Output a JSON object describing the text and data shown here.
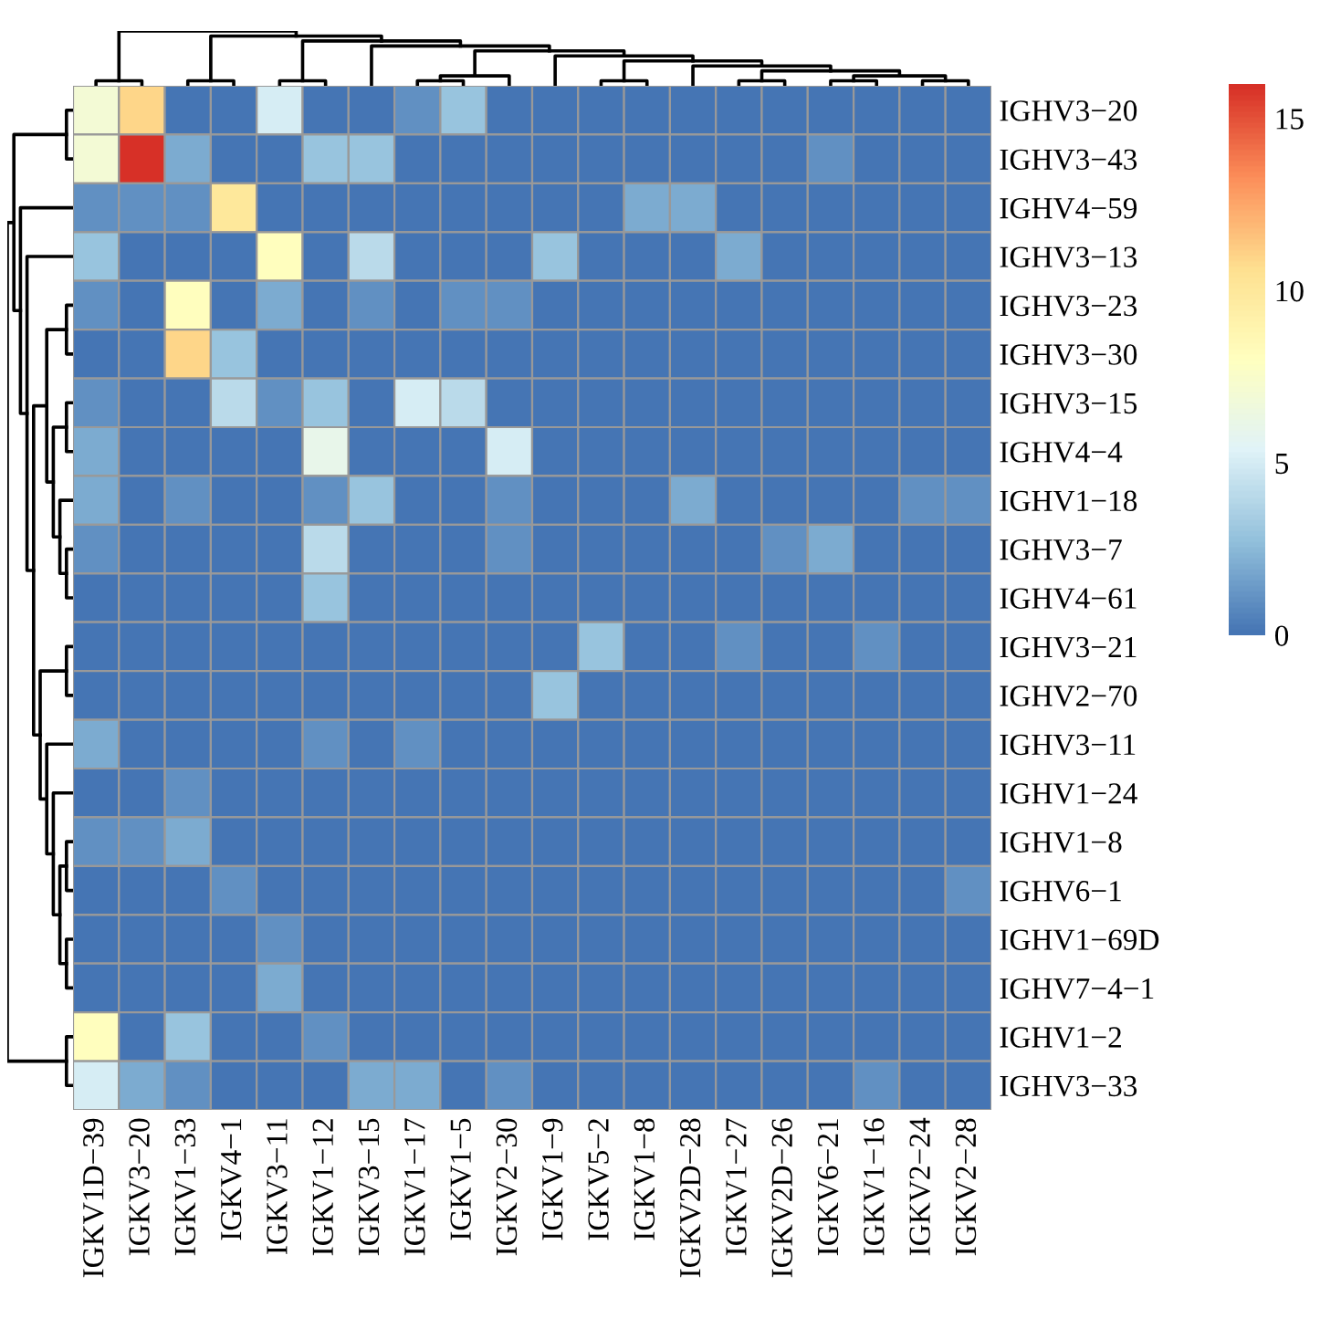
{
  "chart_data": {
    "type": "heatmap",
    "categories": [
      "IGKV1D−39",
      "IGKV3−20",
      "IGKV1−33",
      "IGKV4−1",
      "IGKV3−11",
      "IGKV1−12",
      "IGKV3−15",
      "IGKV1−17",
      "IGKV1−5",
      "IGKV2−30",
      "IGKV1−9",
      "IGKV5−2",
      "IGKV1−8",
      "IGKV2D−28",
      "IGKV1−27",
      "IGKV2D−26",
      "IGKV6−21",
      "IGKV1−16",
      "IGKV2−24",
      "IGKV2−28"
    ],
    "y_categories": [
      "IGHV3−20",
      "IGHV3−43",
      "IGHV4−59",
      "IGHV3−13",
      "IGHV3−23",
      "IGHV3−30",
      "IGHV3−15",
      "IGHV4−4",
      "IGHV1−18",
      "IGHV3−7",
      "IGHV4−61",
      "IGHV3−21",
      "IGHV2−70",
      "IGHV3−11",
      "IGHV1−24",
      "IGHV1−8",
      "IGHV6−1",
      "IGHV1−69D",
      "IGHV7−4−1",
      "IGHV1−2",
      "IGHV3−33"
    ],
    "cells": [
      [
        7,
        11,
        0,
        0,
        5,
        0,
        0,
        1,
        3,
        0,
        0,
        0,
        0,
        0,
        0,
        0,
        0,
        0,
        0,
        0
      ],
      [
        7,
        16,
        2,
        0,
        0,
        3,
        3,
        0,
        0,
        0,
        0,
        0,
        0,
        0,
        0,
        0,
        1,
        0,
        0,
        0
      ],
      [
        1,
        1,
        1,
        10,
        0,
        0,
        0,
        0,
        0,
        0,
        0,
        0,
        2,
        2,
        0,
        0,
        0,
        0,
        0,
        0
      ],
      [
        3,
        0,
        0,
        0,
        8,
        0,
        4,
        0,
        0,
        0,
        3,
        0,
        0,
        0,
        2,
        0,
        0,
        0,
        0,
        0
      ],
      [
        1,
        0,
        8,
        0,
        2,
        0,
        1,
        0,
        1,
        1,
        0,
        0,
        0,
        0,
        0,
        0,
        0,
        0,
        0,
        0
      ],
      [
        0,
        0,
        11,
        3,
        0,
        0,
        0,
        0,
        0,
        0,
        0,
        0,
        0,
        0,
        0,
        0,
        0,
        0,
        0,
        0
      ],
      [
        1,
        0,
        0,
        4,
        1,
        3,
        0,
        5,
        4,
        0,
        0,
        0,
        0,
        0,
        0,
        0,
        0,
        0,
        0,
        0
      ],
      [
        2,
        0,
        0,
        0,
        0,
        6,
        0,
        0,
        0,
        5,
        0,
        0,
        0,
        0,
        0,
        0,
        0,
        0,
        0,
        0
      ],
      [
        2,
        0,
        1,
        0,
        0,
        1,
        3,
        0,
        0,
        1,
        0,
        0,
        0,
        2,
        0,
        0,
        0,
        0,
        1,
        1
      ],
      [
        1,
        0,
        0,
        0,
        0,
        4,
        0,
        0,
        0,
        1,
        0,
        0,
        0,
        0,
        0,
        1,
        2,
        0,
        0,
        0
      ],
      [
        0,
        0,
        0,
        0,
        0,
        3,
        0,
        0,
        0,
        0,
        0,
        0,
        0,
        0,
        0,
        0,
        0,
        0,
        0,
        0
      ],
      [
        0,
        0,
        0,
        0,
        0,
        0,
        0,
        0,
        0,
        0,
        0,
        3,
        0,
        0,
        1,
        0,
        0,
        1,
        0,
        0
      ],
      [
        0,
        0,
        0,
        0,
        0,
        0,
        0,
        0,
        0,
        0,
        3,
        0,
        0,
        0,
        0,
        0,
        0,
        0,
        0,
        0
      ],
      [
        2,
        0,
        0,
        0,
        0,
        1,
        0,
        1,
        0,
        0,
        0,
        0,
        0,
        0,
        0,
        0,
        0,
        0,
        0,
        0
      ],
      [
        0,
        0,
        1,
        0,
        0,
        0,
        0,
        0,
        0,
        0,
        0,
        0,
        0,
        0,
        0,
        0,
        0,
        0,
        0,
        0
      ],
      [
        1,
        1,
        2,
        0,
        0,
        0,
        0,
        0,
        0,
        0,
        0,
        0,
        0,
        0,
        0,
        0,
        0,
        0,
        0,
        0
      ],
      [
        0,
        0,
        0,
        1,
        0,
        0,
        0,
        0,
        0,
        0,
        0,
        0,
        0,
        0,
        0,
        0,
        0,
        0,
        0,
        1
      ],
      [
        0,
        0,
        0,
        0,
        1,
        0,
        0,
        0,
        0,
        0,
        0,
        0,
        0,
        0,
        0,
        0,
        0,
        0,
        0,
        0
      ],
      [
        0,
        0,
        0,
        0,
        2,
        0,
        0,
        0,
        0,
        0,
        0,
        0,
        0,
        0,
        0,
        0,
        0,
        0,
        0,
        0
      ],
      [
        8,
        0,
        3,
        0,
        0,
        1,
        0,
        0,
        0,
        0,
        0,
        0,
        0,
        0,
        0,
        0,
        0,
        0,
        0,
        0
      ],
      [
        5,
        2,
        1,
        0,
        0,
        0,
        2,
        2,
        0,
        1,
        0,
        0,
        0,
        0,
        0,
        0,
        0,
        1,
        0,
        0
      ]
    ],
    "clim": [
      0,
      16
    ],
    "cticks": [
      0,
      5,
      10,
      15
    ]
  }
}
